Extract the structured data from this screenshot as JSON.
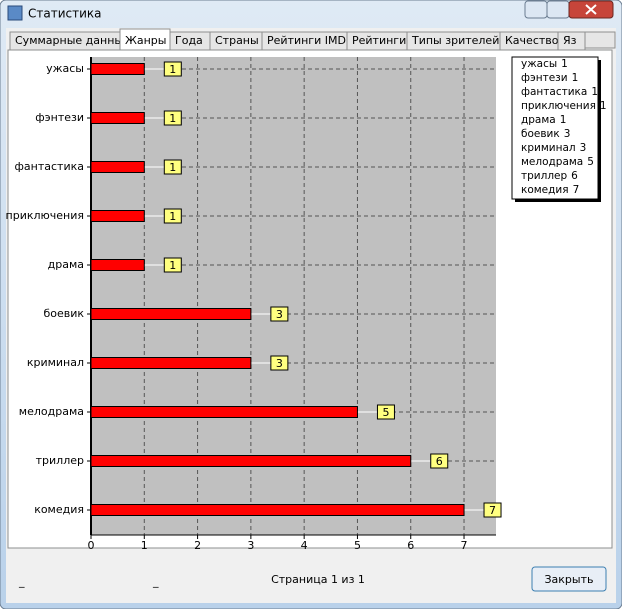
{
  "window": {
    "title": "Статистика"
  },
  "tabs": [
    "Суммарные данные",
    "Жанры",
    "Года",
    "Страны",
    "Рейтинги IMDB",
    "Рейтинги",
    "Типы зрителей",
    "Качество",
    "Яз"
  ],
  "chart_data": {
    "type": "bar",
    "orientation": "horizontal",
    "categories": [
      "ужасы",
      "фэнтези",
      "фантастика",
      "приключения",
      "драма",
      "боевик",
      "криминал",
      "мелодрама",
      "триллер",
      "комедия"
    ],
    "values": [
      1,
      1,
      1,
      1,
      1,
      3,
      3,
      5,
      6,
      7
    ],
    "color": "#ff0000",
    "xlim": [
      0,
      7.6
    ],
    "xticks": [
      0,
      1,
      2,
      3,
      4,
      5,
      6,
      7
    ],
    "grid": true,
    "legend": "upper right"
  },
  "footer": {
    "marks": [
      "_",
      "_"
    ],
    "page": "Страница 1 из 1",
    "button": "Закрыть"
  }
}
